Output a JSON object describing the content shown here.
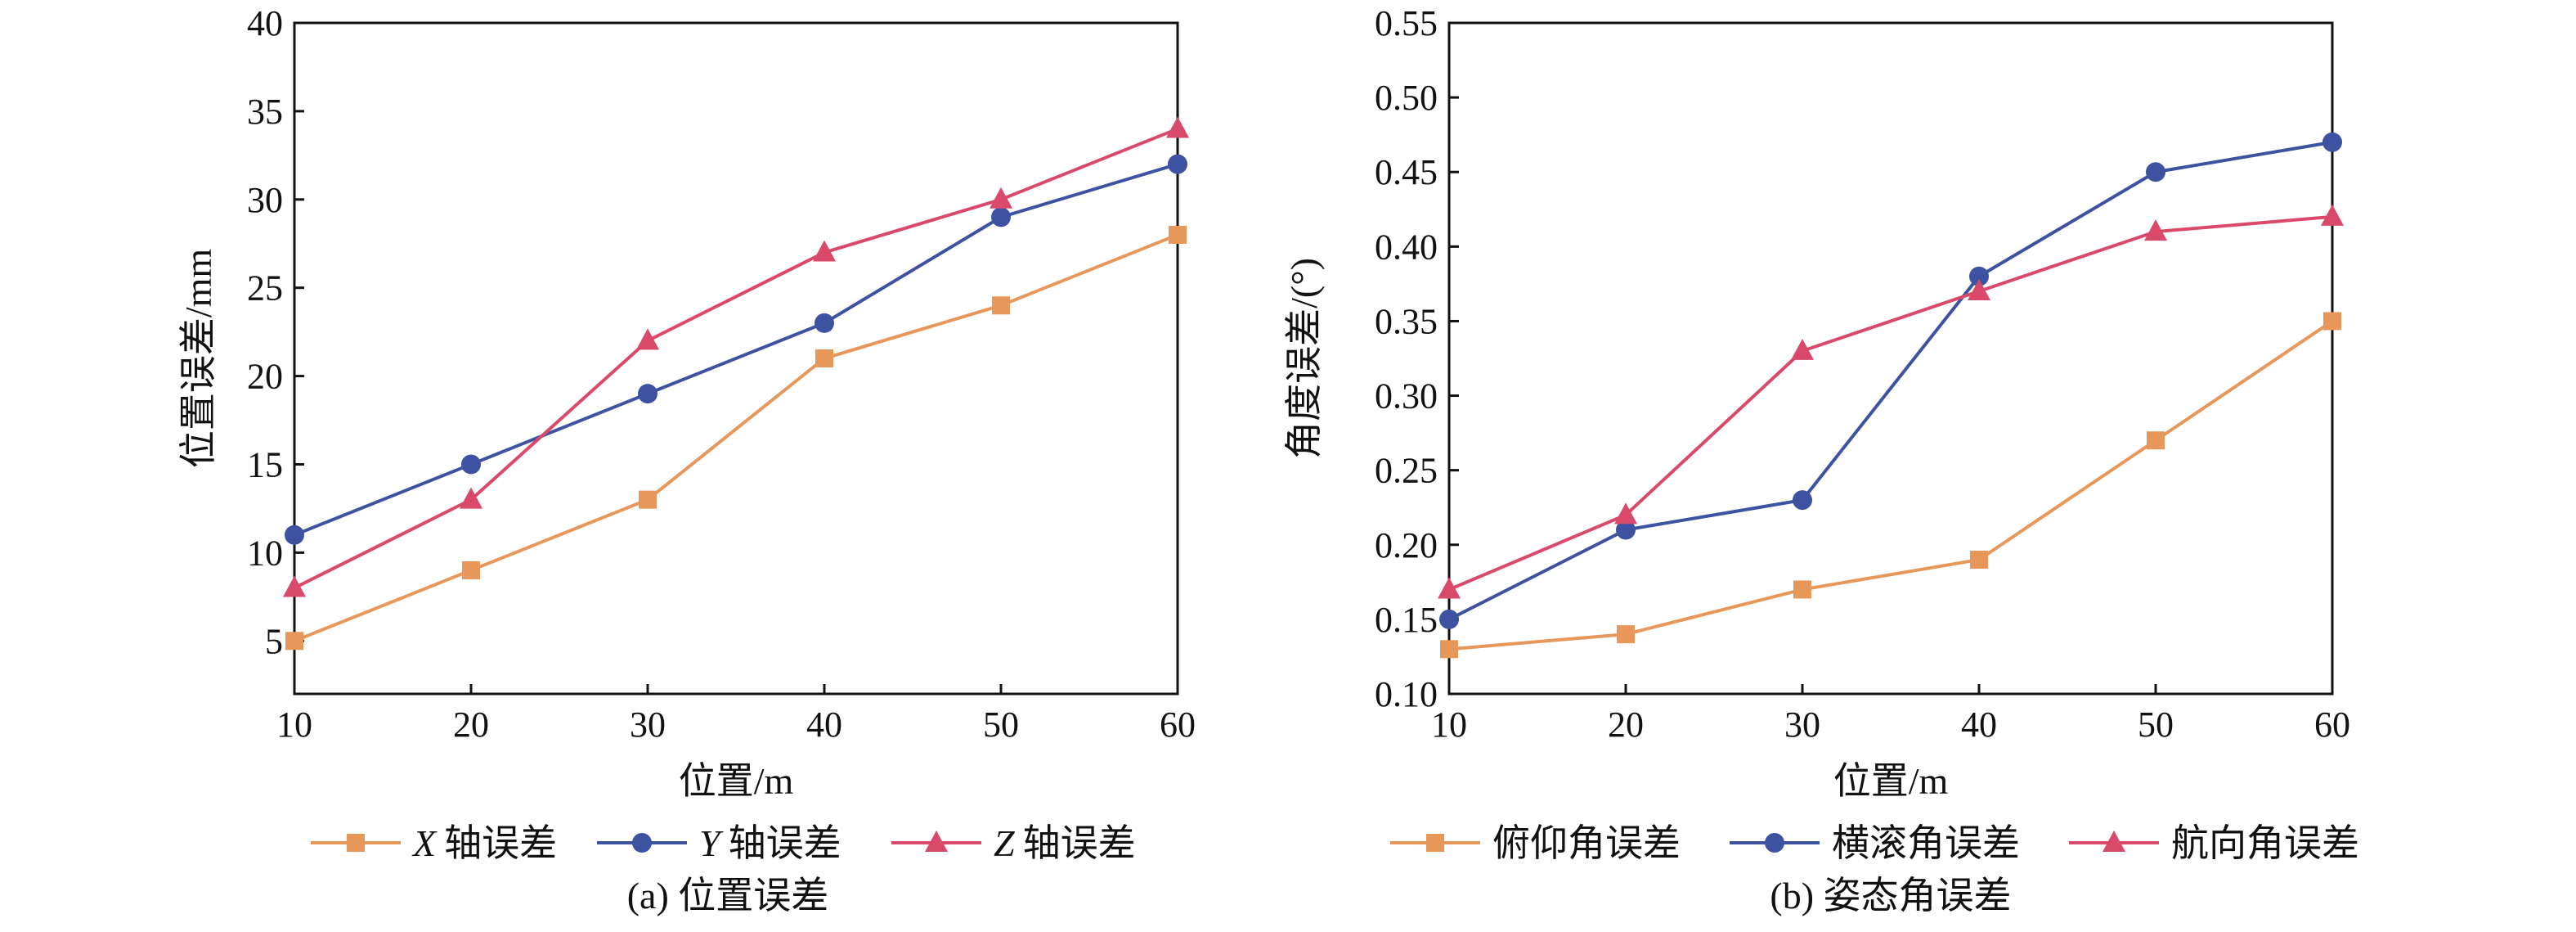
{
  "colors": {
    "orange": "#E8975A",
    "blue": "#3D52A0",
    "red": "#D94A6A",
    "axis": "#111111"
  },
  "chart_data": [
    {
      "type": "line",
      "caption": "(a) 位置误差",
      "xlabel": "位置/m",
      "ylabel": "位置误差/mm",
      "x": [
        10,
        20,
        30,
        40,
        50,
        60
      ],
      "xlim": [
        10,
        60
      ],
      "ylim": [
        2,
        40
      ],
      "xticks": [
        "10",
        "20",
        "30",
        "40",
        "50",
        "60"
      ],
      "yticks": [
        "5",
        "10",
        "15",
        "20",
        "25",
        "30",
        "35",
        "40"
      ],
      "ytick_values": [
        5,
        10,
        15,
        20,
        25,
        30,
        35,
        40
      ],
      "legend_position": "bottom",
      "series": [
        {
          "axis_letter": "X",
          "name_suffix": "轴误差",
          "color": "#E8975A",
          "marker": "square",
          "values": [
            5,
            9,
            13,
            21,
            24,
            28
          ]
        },
        {
          "axis_letter": "Y",
          "name_suffix": "轴误差",
          "color": "#3D52A0",
          "marker": "circle",
          "values": [
            11,
            15,
            19,
            23,
            29,
            32
          ]
        },
        {
          "axis_letter": "Z",
          "name_suffix": "轴误差",
          "color": "#D94A6A",
          "marker": "triangle",
          "values": [
            8,
            13,
            22,
            27,
            30,
            34
          ]
        }
      ]
    },
    {
      "type": "line",
      "caption": "(b) 姿态角误差",
      "xlabel": "位置/m",
      "ylabel": "角度误差/(°)",
      "x": [
        10,
        20,
        30,
        40,
        50,
        60
      ],
      "xlim": [
        10,
        60
      ],
      "ylim": [
        0.1,
        0.55
      ],
      "xticks": [
        "10",
        "20",
        "30",
        "40",
        "50",
        "60"
      ],
      "yticks": [
        "0.10",
        "0.15",
        "0.20",
        "0.25",
        "0.30",
        "0.35",
        "0.40",
        "0.45",
        "0.50",
        "0.55"
      ],
      "ytick_values": [
        0.1,
        0.15,
        0.2,
        0.25,
        0.3,
        0.35,
        0.4,
        0.45,
        0.5,
        0.55
      ],
      "legend_position": "bottom",
      "series": [
        {
          "name": "俯仰角误差",
          "color": "#E8975A",
          "marker": "square",
          "values": [
            0.13,
            0.14,
            0.17,
            0.19,
            0.27,
            0.35
          ]
        },
        {
          "name": "横滚角误差",
          "color": "#3D52A0",
          "marker": "circle",
          "values": [
            0.15,
            0.21,
            0.23,
            0.38,
            0.45,
            0.47
          ]
        },
        {
          "name": "航向角误差",
          "color": "#D94A6A",
          "marker": "triangle",
          "values": [
            0.17,
            0.22,
            0.33,
            0.37,
            0.41,
            0.42
          ]
        }
      ]
    }
  ]
}
